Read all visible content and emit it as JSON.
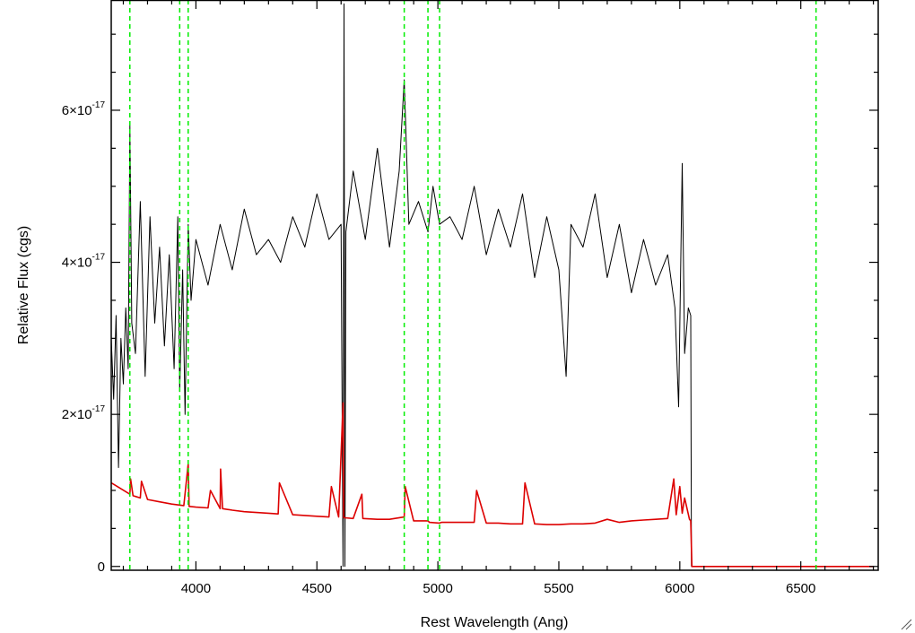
{
  "chart_data": {
    "type": "line",
    "xlabel": "Rest Wavelength (Ang)",
    "ylabel": "Relative Flux (cgs)",
    "xlim": [
      3650,
      6820
    ],
    "ylim": [
      -5e-19,
      7.45e-17
    ],
    "x_ticks": [
      {
        "value": 4000,
        "label": "4000"
      },
      {
        "value": 4500,
        "label": "4500"
      },
      {
        "value": 5000,
        "label": "5000"
      },
      {
        "value": 5500,
        "label": "5500"
      },
      {
        "value": 6000,
        "label": "6000"
      },
      {
        "value": 6500,
        "label": "6500"
      }
    ],
    "y_ticks": [
      {
        "value": 0,
        "label": "0"
      },
      {
        "value": 2e-17,
        "mantissa": "2×10",
        "exponent": "-17"
      },
      {
        "value": 4e-17,
        "mantissa": "4×10",
        "exponent": "-17"
      },
      {
        "value": 6e-17,
        "mantissa": "6×10",
        "exponent": "-17"
      }
    ],
    "grid": false,
    "colors": {
      "spectrum": "#000000",
      "model": "#dd0000",
      "lines": "#00ee00"
    },
    "series": [
      {
        "role": "observed-spectrum",
        "color": "#000000",
        "x": [
          3650,
          3660,
          3670,
          3680,
          3690,
          3700,
          3710,
          3720,
          3727,
          3735,
          3750,
          3770,
          3790,
          3810,
          3830,
          3850,
          3870,
          3890,
          3910,
          3925,
          3933,
          3945,
          3955,
          3968,
          3980,
          4000,
          4050,
          4100,
          4150,
          4200,
          4250,
          4300,
          4350,
          4400,
          4450,
          4500,
          4550,
          4600,
          4608,
          4612,
          4616,
          4620,
          4650,
          4700,
          4750,
          4800,
          4840,
          4861,
          4880,
          4920,
          4959,
          4980,
          5007,
          5050,
          5100,
          5150,
          5200,
          5250,
          5300,
          5350,
          5400,
          5450,
          5500,
          5530,
          5550,
          5600,
          5650,
          5700,
          5750,
          5800,
          5850,
          5900,
          5950,
          5980,
          5995,
          6010,
          6020,
          6035,
          6045,
          6048,
          6800
        ],
        "y": [
          3e-17,
          2.2e-17,
          3.3e-17,
          1.3e-17,
          3e-17,
          2.4e-17,
          3.4e-17,
          2.6e-17,
          5.8e-17,
          3.2e-17,
          2.8e-17,
          4.8e-17,
          2.5e-17,
          4.6e-17,
          3.2e-17,
          4.2e-17,
          2.9e-17,
          4.1e-17,
          2.6e-17,
          4.6e-17,
          2.3e-17,
          3.9e-17,
          2e-17,
          4.5e-17,
          3.5e-17,
          4.3e-17,
          3.7e-17,
          4.5e-17,
          3.9e-17,
          4.7e-17,
          4.1e-17,
          4.3e-17,
          4e-17,
          4.6e-17,
          4.2e-17,
          4.9e-17,
          4.3e-17,
          4.5e-17,
          0.0,
          7.4e-17,
          0.0,
          4.4e-17,
          5.2e-17,
          4.3e-17,
          5.5e-17,
          4.2e-17,
          5.2e-17,
          6.4e-17,
          4.5e-17,
          4.8e-17,
          4.4e-17,
          5e-17,
          4.5e-17,
          4.6e-17,
          4.3e-17,
          5e-17,
          4.1e-17,
          4.7e-17,
          4.2e-17,
          4.9e-17,
          3.8e-17,
          4.6e-17,
          3.9e-17,
          2.5e-17,
          4.5e-17,
          4.2e-17,
          4.9e-17,
          3.8e-17,
          4.5e-17,
          3.6e-17,
          4.3e-17,
          3.7e-17,
          4.1e-17,
          3.4e-17,
          2.1e-17,
          5.3e-17,
          2.8e-17,
          3.4e-17,
          3.3e-17,
          0.0,
          0.0
        ]
      },
      {
        "role": "model-spectrum",
        "color": "#dd0000",
        "x": [
          3650,
          3727,
          3730,
          3740,
          3750,
          3770,
          3775,
          3800,
          3850,
          3900,
          3950,
          3968,
          3972,
          4000,
          4050,
          4060,
          4100,
          4102,
          4110,
          4150,
          4200,
          4250,
          4300,
          4340,
          4345,
          4400,
          4450,
          4500,
          4550,
          4560,
          4590,
          4608,
          4611,
          4616,
          4650,
          4686,
          4690,
          4750,
          4800,
          4861,
          4865,
          4900,
          4959,
          4965,
          5007,
          5015,
          5100,
          5150,
          5160,
          5200,
          5250,
          5300,
          5350,
          5360,
          5400,
          5450,
          5500,
          5550,
          5600,
          5650,
          5700,
          5750,
          5800,
          5850,
          5900,
          5950,
          5975,
          5985,
          6000,
          6010,
          6020,
          6040,
          6045,
          6050,
          6800
        ],
        "y": [
          1.1e-17,
          9.5e-18,
          1.15e-17,
          9.3e-18,
          9.2e-18,
          9e-18,
          1.12e-17,
          8.8e-18,
          8.5e-18,
          8.2e-18,
          8e-18,
          1.35e-17,
          7.9e-18,
          7.8e-18,
          7.7e-18,
          1e-17,
          7.6e-18,
          1.28e-17,
          7.6e-18,
          7.4e-18,
          7.2e-18,
          7.1e-18,
          7e-18,
          6.9e-18,
          1.1e-17,
          6.8e-18,
          6.7e-18,
          6.6e-18,
          6.5e-18,
          1.05e-17,
          6.5e-18,
          2.15e-17,
          6.4e-18,
          6.4e-18,
          6.3e-18,
          9.5e-18,
          6.3e-18,
          6.2e-18,
          6.2e-18,
          6.5e-18,
          1.05e-17,
          6e-18,
          6e-18,
          5.8e-18,
          5.7e-18,
          5.8e-18,
          5.8e-18,
          5.8e-18,
          1e-17,
          5.7e-18,
          5.7e-18,
          5.6e-18,
          5.6e-18,
          1.1e-17,
          5.6e-18,
          5.5e-18,
          5.5e-18,
          5.6e-18,
          5.6e-18,
          5.7e-18,
          6.2e-18,
          5.8e-18,
          6e-18,
          6.1e-18,
          6.2e-18,
          6.3e-18,
          1.15e-17,
          6.8e-18,
          1.05e-17,
          7e-18,
          9e-18,
          6.2e-18,
          6e-18,
          0.0,
          0.0
        ]
      }
    ],
    "vlines": [
      3727,
      3933,
      3968,
      4861,
      4959,
      5007,
      6563
    ]
  }
}
